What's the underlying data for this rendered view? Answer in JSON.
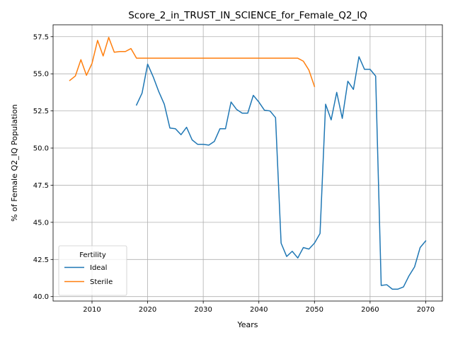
{
  "chart_data": {
    "type": "line",
    "title": "Score_2_in_TRUST_IN_SCIENCE_for_Female_Q2_IQ",
    "xlabel": "Years",
    "ylabel": "% of Female Q2_IQ Population",
    "xlim": [
      2003,
      2073
    ],
    "ylim": [
      39.7,
      58.3
    ],
    "xticks": [
      2010,
      2020,
      2030,
      2040,
      2050,
      2060,
      2070
    ],
    "yticks": [
      40.0,
      42.5,
      45.0,
      47.5,
      50.0,
      52.5,
      55.0,
      57.5
    ],
    "ytick_labels": [
      "40.0",
      "42.5",
      "45.0",
      "47.5",
      "50.0",
      "52.5",
      "55.0",
      "57.5"
    ],
    "grid": true,
    "legend": {
      "title": "Fertility",
      "placement": "lower-left"
    },
    "series": [
      {
        "name": "Ideal",
        "color": "#1f77b4",
        "x": [
          2018,
          2019,
          2020,
          2021,
          2022,
          2023,
          2024,
          2025,
          2026,
          2027,
          2028,
          2029,
          2030,
          2031,
          2032,
          2033,
          2034,
          2035,
          2036,
          2037,
          2038,
          2039,
          2040,
          2041,
          2042,
          2043,
          2044,
          2045,
          2046,
          2047,
          2048,
          2049,
          2050,
          2051,
          2052,
          2053,
          2054,
          2055,
          2056,
          2057,
          2058,
          2059,
          2060,
          2061,
          2062,
          2063,
          2064,
          2065,
          2066,
          2067,
          2068,
          2069,
          2070
        ],
        "y": [
          52.9,
          53.7,
          55.65,
          54.8,
          53.8,
          52.95,
          51.35,
          51.3,
          50.9,
          51.4,
          50.55,
          50.25,
          50.25,
          50.2,
          50.45,
          51.3,
          51.3,
          53.1,
          52.6,
          52.35,
          52.35,
          53.55,
          53.1,
          52.55,
          52.5,
          52.05,
          43.6,
          42.7,
          43.05,
          42.6,
          43.3,
          43.2,
          43.6,
          44.25,
          52.95,
          51.9,
          53.75,
          52.0,
          54.5,
          53.95,
          56.15,
          55.3,
          55.3,
          54.85,
          40.75,
          40.8,
          40.5,
          40.5,
          40.65,
          41.4,
          42.0,
          43.3,
          43.75
        ]
      },
      {
        "name": "Sterile",
        "color": "#ff7f0e",
        "x": [
          2006,
          2007,
          2008,
          2009,
          2010,
          2011,
          2012,
          2013,
          2014,
          2015,
          2016,
          2017,
          2018,
          2019,
          2020,
          2025,
          2030,
          2035,
          2040,
          2045,
          2047,
          2048,
          2049,
          2050
        ],
        "y": [
          54.55,
          54.85,
          55.95,
          54.9,
          55.7,
          57.25,
          56.2,
          57.45,
          56.45,
          56.5,
          56.5,
          56.7,
          56.05,
          56.05,
          56.05,
          56.05,
          56.05,
          56.05,
          56.05,
          56.05,
          56.05,
          55.85,
          55.25,
          54.15
        ]
      }
    ]
  }
}
